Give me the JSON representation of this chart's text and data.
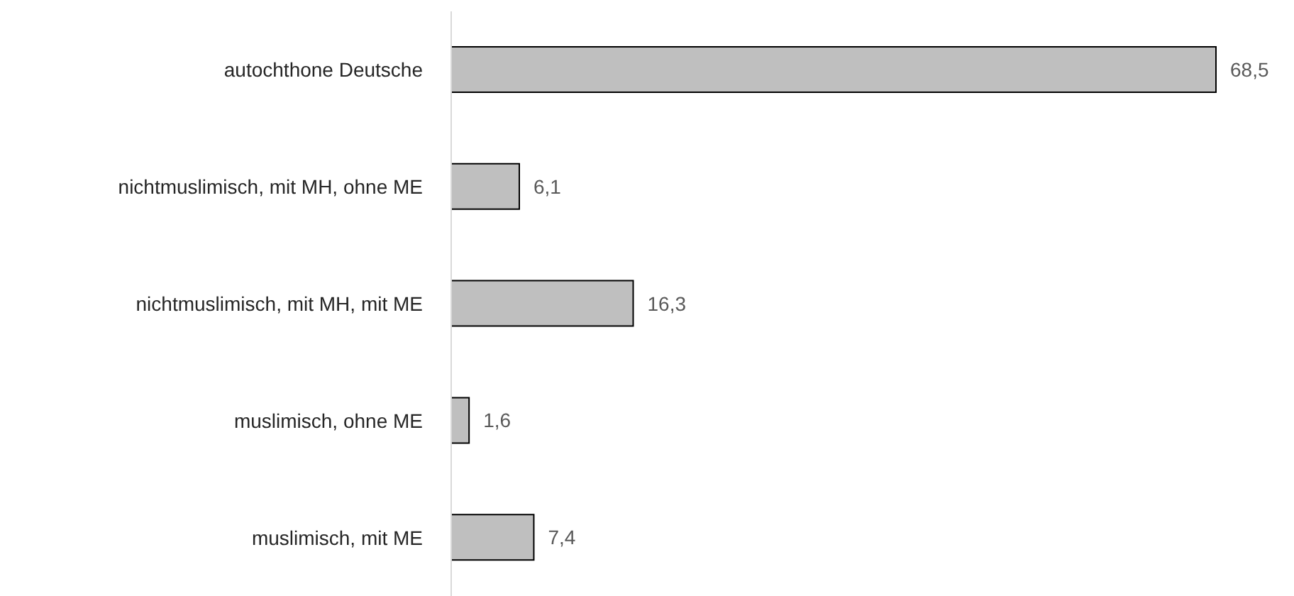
{
  "chart_data": {
    "type": "bar",
    "orientation": "horizontal",
    "categories": [
      "autochthone Deutsche",
      "nichtmuslimisch, mit MH, ohne ME",
      "nichtmuslimisch, mit MH, mit ME",
      "muslimisch, ohne ME",
      "muslimisch, mit ME"
    ],
    "values": [
      68.5,
      6.1,
      16.3,
      1.6,
      7.4
    ],
    "value_labels": [
      "68,5",
      "6,1",
      "16,3",
      "1,6",
      "7,4"
    ],
    "color": "#bfbfbf"
  }
}
